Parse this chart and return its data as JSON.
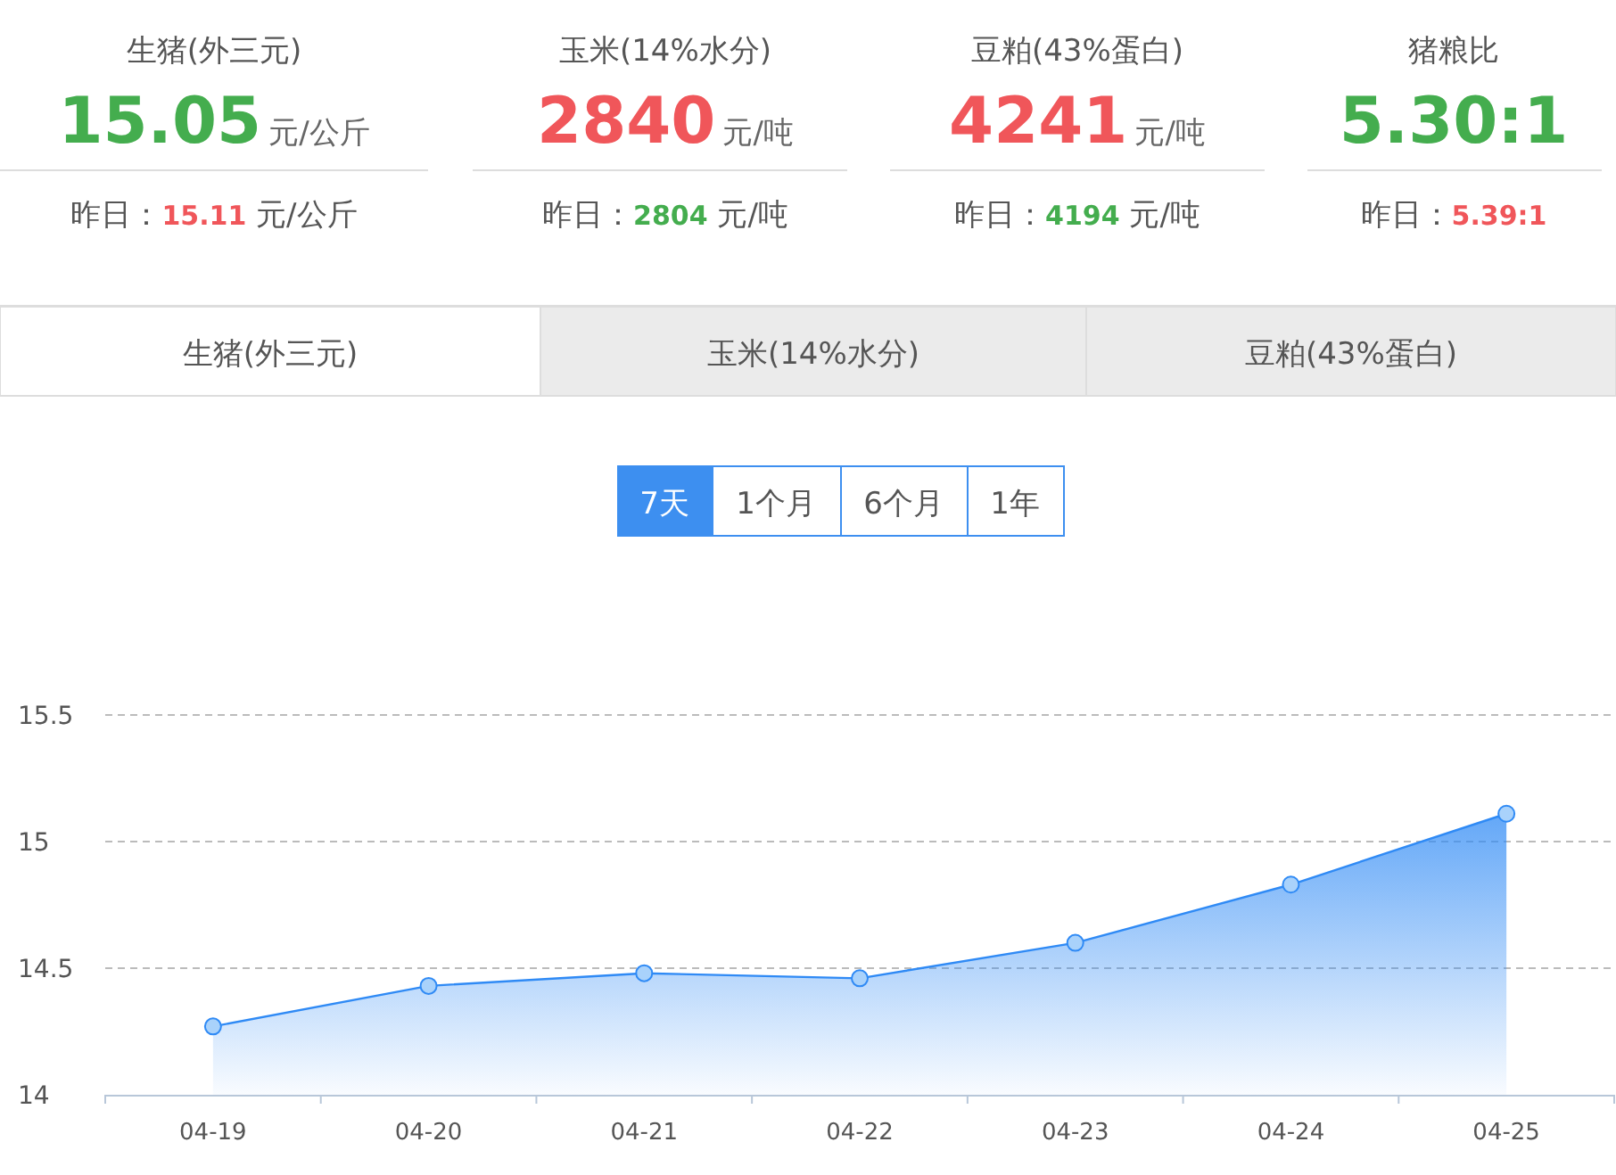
{
  "chart_data": [
    {
      "type": "other",
      "annotations": [
        "生猪(外三元)",
        "15.05元/公斤",
        "昨日：15.11 元/公斤",
        "玉米(14%水分)",
        "2840元/吨",
        "昨日：2804 元/吨",
        "豆粕(43%蛋白)",
        "4241元/吨",
        "昨日：4194 元/吨",
        "猪粮比",
        "5.30:1",
        "昨日：5.39:1",
        "生猪(外三元)",
        "玉米(14%水分)",
        "豆粕(43%蛋白)",
        "7天",
        "1个月",
        "6个月",
        "1年"
      ],
      "colors": [
        "#44ad4e",
        "#f0565a",
        "#f0565a",
        "#44ad4e",
        "#f0565a",
        "#44ad4e",
        "#44ad4e",
        "#f0565a"
      ]
    },
    {
      "type": "area",
      "categories": [
        "04-19",
        "04-20",
        "04-21",
        "04-22",
        "04-23",
        "04-24",
        "04-25"
      ],
      "series": [
        {
          "color": "#2f8af5",
          "values": [
            14.27,
            14.43,
            14.48,
            14.46,
            14.6,
            14.83,
            15.11
          ]
        }
      ],
      "ylim": [
        14,
        15.5
      ],
      "yticks": [
        14,
        14.5,
        15,
        15.5
      ],
      "grid": "y",
      "marker": "circle"
    }
  ]
}
